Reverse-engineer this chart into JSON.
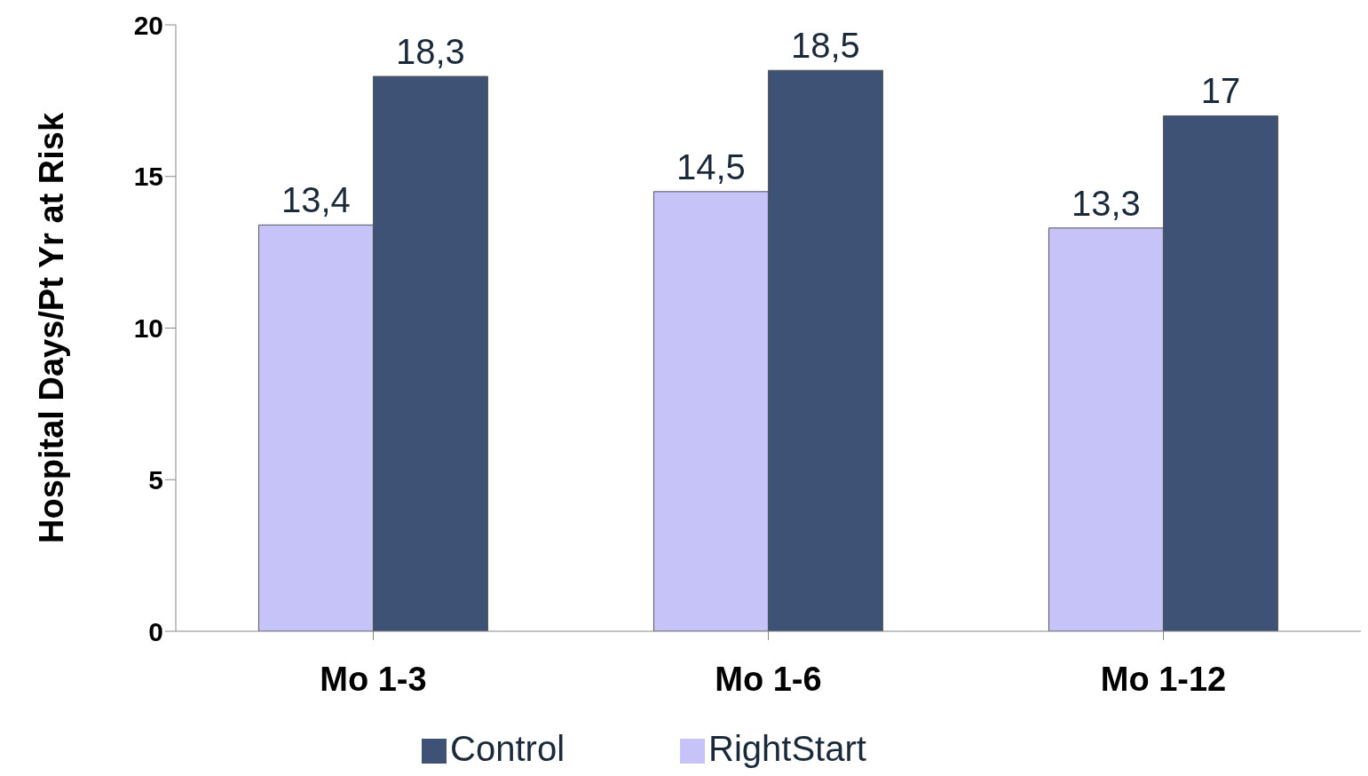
{
  "chart_data": {
    "type": "bar",
    "ylabel": "Hospital Days/Pt Yr at Risk",
    "categories": [
      "Mo 1-3",
      "Mo 1-6",
      "Mo 1-12"
    ],
    "series": [
      {
        "name": "RightStart",
        "color": "#c5c3f7",
        "values": [
          13.4,
          14.5,
          13.3
        ],
        "value_labels": [
          "13,4",
          "14,5",
          "13,3"
        ]
      },
      {
        "name": "Control",
        "color": "#3d5275",
        "values": [
          18.3,
          18.5,
          17
        ],
        "value_labels": [
          "18,3",
          "18,5",
          "17"
        ]
      }
    ],
    "ylim": [
      0,
      20
    ],
    "yticks": [
      0,
      5,
      10,
      15,
      20
    ],
    "grid": false,
    "legend": "bottom"
  }
}
